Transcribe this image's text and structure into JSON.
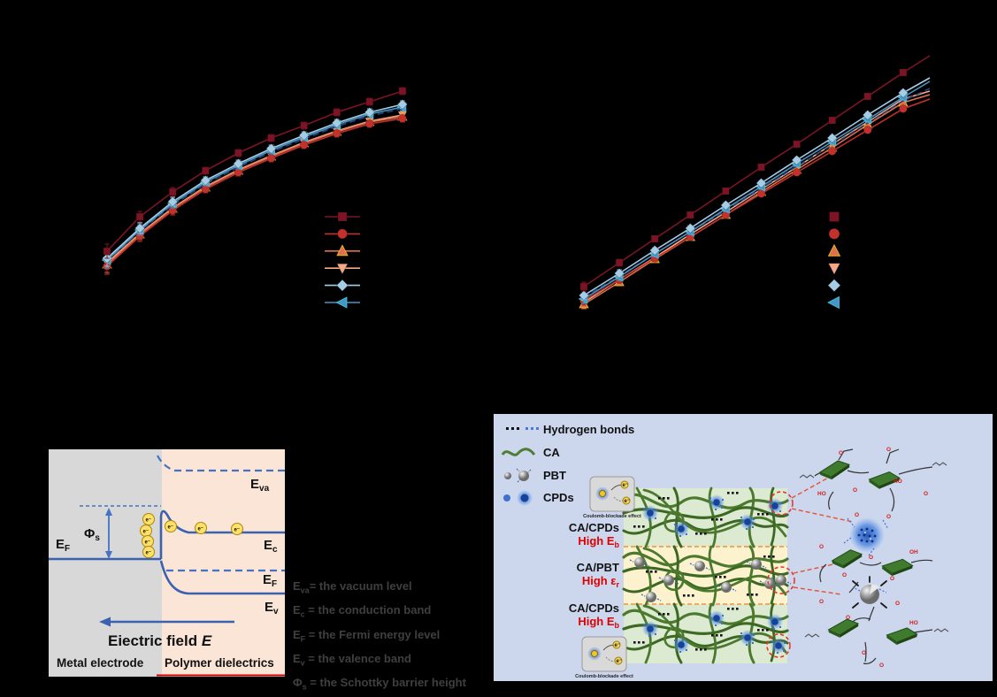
{
  "page": {
    "background": "#000000"
  },
  "chart_data": [
    {
      "type": "line",
      "title": "",
      "xlabel": "",
      "ylabel": "",
      "axes_visible": false,
      "grid": false,
      "legend_position": "lower right",
      "legend_shows_lines": true,
      "x_index": [
        1,
        2,
        3,
        4,
        5,
        6,
        7,
        8,
        9,
        10
      ],
      "series": [
        {
          "label": "",
          "marker": "square",
          "color": "#7d1425",
          "line": "solid",
          "z": 7,
          "values": [
            56,
            95,
            123,
            147,
            167,
            184,
            198,
            213,
            225,
            237
          ],
          "errors": [
            8,
            6,
            5,
            4,
            4,
            4,
            4,
            4,
            4,
            4
          ]
        },
        {
          "label": "",
          "marker": "circle",
          "color": "#c2312b",
          "line": "solid",
          "z": 3,
          "values": [
            39,
            73,
            102,
            126,
            145,
            161,
            176,
            189,
            200,
            206
          ],
          "errors": [
            9,
            6,
            5,
            4,
            4,
            4,
            4,
            4,
            4,
            4
          ]
        },
        {
          "label": "",
          "marker": "triangle-up",
          "color": "#e0704d",
          "edge": "#f2c21f",
          "line": "solid",
          "z": 2,
          "values": [
            41,
            75,
            104,
            128,
            147,
            163,
            178,
            191,
            202,
            208
          ],
          "errors": [
            9,
            6,
            5,
            4,
            4,
            4,
            4,
            4,
            4,
            4
          ]
        },
        {
          "label": "",
          "marker": "triangle-down",
          "color": "#f6a988",
          "line": "solid",
          "z": 1,
          "values": [
            43,
            76,
            105,
            129,
            148,
            164,
            179,
            192,
            203,
            210
          ],
          "errors": [
            13,
            7,
            5,
            4,
            4,
            4,
            4,
            4,
            4,
            4
          ]
        },
        {
          "label": "",
          "marker": "diamond",
          "color": "#a6cde6",
          "line": "solid",
          "z": 6,
          "values": [
            48,
            82,
            112,
            136,
            155,
            172,
            187,
            201,
            213,
            222
          ],
          "errors": [
            9,
            6,
            5,
            4,
            4,
            4,
            4,
            4,
            4,
            4
          ]
        },
        {
          "label": "",
          "marker": "triangle-left",
          "color": "#4795c5",
          "edge": "#3fc8e8",
          "line": "solid",
          "z": 5,
          "values": [
            46,
            80,
            110,
            134,
            153,
            170,
            185,
            199,
            211,
            219
          ],
          "errors": [
            9,
            6,
            5,
            4,
            4,
            4,
            4,
            4,
            4,
            4
          ]
        },
        {
          "label": "",
          "marker": "none",
          "color": "#23457f",
          "line": "dashed",
          "z": 4,
          "values": [
            45,
            79,
            108,
            132,
            151,
            168,
            183,
            197,
            209,
            217
          ]
        }
      ]
    },
    {
      "type": "line",
      "title": "",
      "xlabel": "",
      "ylabel": "",
      "axes_visible": false,
      "grid": false,
      "legend_position": "lower right",
      "legend_shows_lines": false,
      "x_index": [
        1,
        2,
        3,
        4,
        5,
        6,
        7,
        8,
        9,
        10,
        11
      ],
      "series": [
        {
          "label": "",
          "marker": "square",
          "color": "#7d1425",
          "line": "solid",
          "z": 7,
          "marker_count": 10,
          "values": [
            36,
            63,
            90,
            117,
            144,
            171,
            197,
            224,
            251,
            278,
            297
          ],
          "errors": [
            5,
            4,
            3,
            3,
            3,
            3,
            3,
            3,
            3,
            3,
            0
          ]
        },
        {
          "label": "",
          "marker": "circle",
          "color": "#c2312b",
          "line": "solid",
          "z": 3,
          "marker_count": 10,
          "values": [
            20,
            44,
            68,
            92,
            117,
            141,
            165,
            189,
            213,
            237,
            248
          ],
          "errors": [
            5,
            4,
            3,
            3,
            3,
            3,
            3,
            3,
            3,
            3,
            0
          ]
        },
        {
          "label": "",
          "marker": "triangle-up",
          "color": "#e0704d",
          "edge": "#f2c21f",
          "line": "solid",
          "z": 2,
          "marker_count": 10,
          "values": [
            16,
            41,
            67,
            92,
            117,
            143,
            168,
            193,
            219,
            244,
            253
          ],
          "errors": [
            5,
            4,
            3,
            3,
            3,
            3,
            3,
            3,
            3,
            3,
            0
          ]
        },
        {
          "label": "",
          "marker": "triangle-down",
          "color": "#f6a988",
          "line": "solid",
          "z": 1,
          "marker_count": 10,
          "values": [
            18,
            44,
            69,
            95,
            120,
            146,
            171,
            197,
            222,
            248,
            257
          ],
          "errors": [
            5,
            4,
            3,
            3,
            3,
            3,
            3,
            3,
            3,
            3,
            0
          ]
        },
        {
          "label": "",
          "marker": "diamond",
          "color": "#a6cde6",
          "line": "solid",
          "z": 6,
          "marker_count": 10,
          "values": [
            26,
            51,
            77,
            102,
            128,
            153,
            179,
            204,
            230,
            255,
            272
          ],
          "errors": [
            5,
            4,
            3,
            3,
            3,
            3,
            3,
            3,
            3,
            3,
            0
          ]
        },
        {
          "label": "",
          "marker": "triangle-left",
          "color": "#4795c5",
          "edge": "#3fc8e8",
          "line": "solid",
          "z": 5,
          "marker_count": 10,
          "values": [
            22,
            47,
            73,
            98,
            124,
            149,
            175,
            200,
            225,
            250,
            268
          ],
          "errors": [
            5,
            4,
            3,
            3,
            3,
            3,
            3,
            3,
            3,
            3,
            0
          ]
        },
        {
          "label": "",
          "marker": "none",
          "color": "#23457f",
          "line": "dashed",
          "z": 4,
          "marker_count": 0,
          "values": [
            24,
            48,
            73,
            98,
            122,
            147,
            172,
            196,
            221,
            246,
            260
          ]
        }
      ]
    }
  ],
  "band_diagram": {
    "e_f_metal": {
      "base": "E",
      "sub": "F"
    },
    "e_va": {
      "base": "E",
      "sub": "va"
    },
    "e_c": {
      "base": "E",
      "sub": "c"
    },
    "e_f_poly": {
      "base": "E",
      "sub": "F"
    },
    "e_v": {
      "base": "E",
      "sub": "v"
    },
    "phi": {
      "base": "Φ",
      "sub": "s"
    },
    "electron": "e⁻",
    "field_label": "Eiectric field ",
    "field_label_e": "E",
    "metal_label": "Metal electrode",
    "polymer_label": "Polymer dielectrics",
    "accent_blue": "#4472c4",
    "legend": [
      {
        "base": "E",
        "sub": "va",
        "rest": "= the vacuum level"
      },
      {
        "base": "E",
        "sub": "c",
        "rest": " = the conduction band"
      },
      {
        "base": "E",
        "sub": "F",
        "rest": " = the Fermi energy level"
      },
      {
        "base": "E",
        "sub": "v",
        "rest": " = the valence band"
      },
      {
        "base": "Φ",
        "sub": "s",
        "rest": " = the Schottky barrier height"
      }
    ]
  },
  "composite": {
    "legend": {
      "hydrogen": "Hydrogen bonds",
      "ca": "CA",
      "pbt": "PBT",
      "cpds": "CPDs"
    },
    "layers": [
      {
        "name": "CA/CPDs",
        "prop": "High E",
        "prop_sub": "b"
      },
      {
        "name": "CA/PBT",
        "prop": "High ε",
        "prop_sub": "r"
      },
      {
        "name": "CA/CPDs",
        "prop": "High E",
        "prop_sub": "b"
      }
    ],
    "inset_label_top": "Coulomb-blockade effect",
    "inset_label_bottom": "Coulomb-blockade effect",
    "electron": "e⁻",
    "colors": {
      "panel_bg": "#ccd7ee",
      "green_layer": "#dcead2",
      "yellow_layer": "#fcf2cd",
      "network_green": "#4b7a2e",
      "cpd_blue": "#2b63c9",
      "highlight_red": "#e23a2c",
      "hbond_black": "#111111",
      "hbond_blue": "#4a7ad4"
    }
  }
}
